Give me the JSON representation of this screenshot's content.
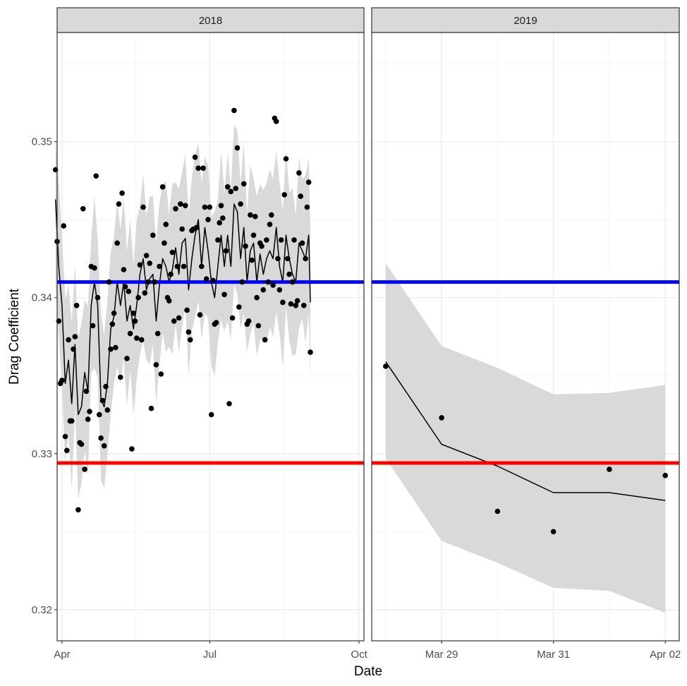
{
  "chart_data": {
    "type": "scatter",
    "xlabel": "Date",
    "ylabel": "Drag Coefficient",
    "ylim": [
      0.318,
      0.357
    ],
    "yticks": [
      0.32,
      0.33,
      0.34,
      0.35
    ],
    "ytick_labels": [
      "0.32",
      "0.33",
      "0.34",
      "0.35"
    ],
    "reference_lines": [
      {
        "y": 0.341,
        "color": "#0000ff"
      },
      {
        "y": 0.3294,
        "color": "#ff0000"
      }
    ],
    "colors": {
      "points": "#000000",
      "line": "#000000",
      "ribbon": "#d9d9d9",
      "strip_bg": "#d9d9d9",
      "grid_major": "#ebebeb",
      "panel_border": "#333333"
    },
    "grid": true,
    "legend": "none",
    "panels": [
      {
        "label": "2018",
        "x_unit": "day-of-year",
        "xlim": [
          "2018-03-29",
          "2018-10-04"
        ],
        "xticks": [
          "2018-04-01",
          "2018-07-01",
          "2018-10-01"
        ],
        "xtick_labels": [
          "Apr",
          "Jul",
          "Oct"
        ],
        "points": [
          [
            "2018-03-28",
            0.3482
          ],
          [
            "2018-03-29",
            0.3436
          ],
          [
            "2018-03-30",
            0.3385
          ],
          [
            "2018-03-31",
            0.3345
          ],
          [
            "2018-04-01",
            0.3347
          ],
          [
            "2018-04-02",
            0.3446
          ],
          [
            "2018-04-03",
            0.3311
          ],
          [
            "2018-04-04",
            0.3302
          ],
          [
            "2018-04-05",
            0.3373
          ],
          [
            "2018-04-06",
            0.3321
          ],
          [
            "2018-04-07",
            0.3321
          ],
          [
            "2018-04-08",
            0.3367
          ],
          [
            "2018-04-09",
            0.3375
          ],
          [
            "2018-04-10",
            0.3395
          ],
          [
            "2018-04-11",
            0.3264
          ],
          [
            "2018-04-12",
            0.3307
          ],
          [
            "2018-04-13",
            0.3306
          ],
          [
            "2018-04-14",
            0.3457
          ],
          [
            "2018-04-15",
            0.329
          ],
          [
            "2018-04-16",
            0.334
          ],
          [
            "2018-04-17",
            0.3322
          ],
          [
            "2018-04-18",
            0.3327
          ],
          [
            "2018-04-19",
            0.342
          ],
          [
            "2018-04-20",
            0.3382
          ],
          [
            "2018-04-21",
            0.3419
          ],
          [
            "2018-04-22",
            0.3478
          ],
          [
            "2018-04-23",
            0.34
          ],
          [
            "2018-04-24",
            0.3325
          ],
          [
            "2018-04-25",
            0.331
          ],
          [
            "2018-04-26",
            0.3334
          ],
          [
            "2018-04-27",
            0.3305
          ],
          [
            "2018-04-28",
            0.3343
          ],
          [
            "2018-04-29",
            0.3328
          ],
          [
            "2018-04-30",
            0.341
          ],
          [
            "2018-05-01",
            0.3367
          ],
          [
            "2018-05-02",
            0.3383
          ],
          [
            "2018-05-03",
            0.339
          ],
          [
            "2018-05-04",
            0.3368
          ],
          [
            "2018-05-05",
            0.3435
          ],
          [
            "2018-05-06",
            0.346
          ],
          [
            "2018-05-07",
            0.3349
          ],
          [
            "2018-05-08",
            0.3467
          ],
          [
            "2018-05-09",
            0.3418
          ],
          [
            "2018-05-10",
            0.3407
          ],
          [
            "2018-05-11",
            0.3361
          ],
          [
            "2018-05-12",
            0.3404
          ],
          [
            "2018-05-13",
            0.3377
          ],
          [
            "2018-05-14",
            0.3303
          ],
          [
            "2018-05-15",
            0.339
          ],
          [
            "2018-05-16",
            0.3385
          ],
          [
            "2018-05-17",
            0.3374
          ],
          [
            "2018-05-18",
            0.34
          ],
          [
            "2018-05-19",
            0.3421
          ],
          [
            "2018-05-20",
            0.3373
          ],
          [
            "2018-05-21",
            0.3458
          ],
          [
            "2018-05-22",
            0.3403
          ],
          [
            "2018-05-23",
            0.3427
          ],
          [
            "2018-05-24",
            0.341
          ],
          [
            "2018-05-25",
            0.3422
          ],
          [
            "2018-05-26",
            0.3329
          ],
          [
            "2018-05-27",
            0.344
          ],
          [
            "2018-05-28",
            0.341
          ],
          [
            "2018-05-29",
            0.3357
          ],
          [
            "2018-05-30",
            0.3377
          ],
          [
            "2018-05-31",
            0.342
          ],
          [
            "2018-06-01",
            0.3351
          ],
          [
            "2018-06-02",
            0.3471
          ],
          [
            "2018-06-03",
            0.3435
          ],
          [
            "2018-06-04",
            0.3447
          ],
          [
            "2018-06-05",
            0.34
          ],
          [
            "2018-06-06",
            0.3398
          ],
          [
            "2018-06-07",
            0.3415
          ],
          [
            "2018-06-08",
            0.3429
          ],
          [
            "2018-06-09",
            0.3385
          ],
          [
            "2018-06-10",
            0.3457
          ],
          [
            "2018-06-11",
            0.342
          ],
          [
            "2018-06-12",
            0.3387
          ],
          [
            "2018-06-13",
            0.346
          ],
          [
            "2018-06-14",
            0.3444
          ],
          [
            "2018-06-15",
            0.342
          ],
          [
            "2018-06-16",
            0.3459
          ],
          [
            "2018-06-17",
            0.3392
          ],
          [
            "2018-06-18",
            0.3378
          ],
          [
            "2018-06-19",
            0.3373
          ],
          [
            "2018-06-20",
            0.3443
          ],
          [
            "2018-06-21",
            0.3444
          ],
          [
            "2018-06-22",
            0.349
          ],
          [
            "2018-06-23",
            0.3445
          ],
          [
            "2018-06-24",
            0.3483
          ],
          [
            "2018-06-25",
            0.3389
          ],
          [
            "2018-06-26",
            0.342
          ],
          [
            "2018-06-27",
            0.3483
          ],
          [
            "2018-06-28",
            0.3458
          ],
          [
            "2018-06-29",
            0.3412
          ],
          [
            "2018-06-30",
            0.345
          ],
          [
            "2018-07-01",
            0.3458
          ],
          [
            "2018-07-02",
            0.3325
          ],
          [
            "2018-07-03",
            0.3411
          ],
          [
            "2018-07-04",
            0.3383
          ],
          [
            "2018-07-05",
            0.3384
          ],
          [
            "2018-07-06",
            0.3437
          ],
          [
            "2018-07-07",
            0.3448
          ],
          [
            "2018-07-08",
            0.3459
          ],
          [
            "2018-07-09",
            0.3451
          ],
          [
            "2018-07-10",
            0.3402
          ],
          [
            "2018-07-11",
            0.343
          ],
          [
            "2018-07-12",
            0.3471
          ],
          [
            "2018-07-13",
            0.3332
          ],
          [
            "2018-07-14",
            0.3468
          ],
          [
            "2018-07-15",
            0.3387
          ],
          [
            "2018-07-16",
            0.352
          ],
          [
            "2018-07-17",
            0.347
          ],
          [
            "2018-07-18",
            0.3496
          ],
          [
            "2018-07-19",
            0.3394
          ],
          [
            "2018-07-20",
            0.346
          ],
          [
            "2018-07-21",
            0.341
          ],
          [
            "2018-07-22",
            0.3473
          ],
          [
            "2018-07-23",
            0.3433
          ],
          [
            "2018-07-24",
            0.3383
          ],
          [
            "2018-07-25",
            0.3385
          ],
          [
            "2018-07-26",
            0.3453
          ],
          [
            "2018-07-27",
            0.3424
          ],
          [
            "2018-07-28",
            0.344
          ],
          [
            "2018-07-29",
            0.3452
          ],
          [
            "2018-07-30",
            0.34
          ],
          [
            "2018-07-31",
            0.3382
          ],
          [
            "2018-08-01",
            0.3435
          ],
          [
            "2018-08-02",
            0.3433
          ],
          [
            "2018-08-03",
            0.3405
          ],
          [
            "2018-08-04",
            0.3373
          ],
          [
            "2018-08-05",
            0.3437
          ],
          [
            "2018-08-06",
            0.341
          ],
          [
            "2018-08-07",
            0.3447
          ],
          [
            "2018-08-08",
            0.3453
          ],
          [
            "2018-08-09",
            0.3408
          ],
          [
            "2018-08-10",
            0.3515
          ],
          [
            "2018-08-11",
            0.3513
          ],
          [
            "2018-08-12",
            0.3425
          ],
          [
            "2018-08-13",
            0.3405
          ],
          [
            "2018-08-14",
            0.3437
          ],
          [
            "2018-08-15",
            0.3397
          ],
          [
            "2018-08-16",
            0.3466
          ],
          [
            "2018-08-17",
            0.3489
          ],
          [
            "2018-08-18",
            0.3425
          ],
          [
            "2018-08-19",
            0.3415
          ],
          [
            "2018-08-20",
            0.3396
          ],
          [
            "2018-08-21",
            0.341
          ],
          [
            "2018-08-22",
            0.3437
          ],
          [
            "2018-08-23",
            0.3395
          ],
          [
            "2018-08-24",
            0.3398
          ],
          [
            "2018-08-25",
            0.348
          ],
          [
            "2018-08-26",
            0.3465
          ],
          [
            "2018-08-27",
            0.3435
          ],
          [
            "2018-08-28",
            0.3395
          ],
          [
            "2018-08-29",
            0.3425
          ],
          [
            "2018-08-30",
            0.3458
          ],
          [
            "2018-08-31",
            0.3474
          ],
          [
            "2018-09-01",
            0.3365
          ]
        ],
        "line": [
          [
            "2018-03-28",
            0.3463
          ],
          [
            "2018-03-30",
            0.342
          ],
          [
            "2018-04-01",
            0.3395
          ],
          [
            "2018-04-03",
            0.3345
          ],
          [
            "2018-04-05",
            0.336
          ],
          [
            "2018-04-07",
            0.3332
          ],
          [
            "2018-04-09",
            0.337
          ],
          [
            "2018-04-11",
            0.3325
          ],
          [
            "2018-04-13",
            0.333
          ],
          [
            "2018-04-15",
            0.3352
          ],
          [
            "2018-04-17",
            0.334
          ],
          [
            "2018-04-19",
            0.3395
          ],
          [
            "2018-04-21",
            0.341
          ],
          [
            "2018-04-23",
            0.3395
          ],
          [
            "2018-04-25",
            0.3335
          ],
          [
            "2018-04-27",
            0.333
          ],
          [
            "2018-04-29",
            0.3345
          ],
          [
            "2018-05-01",
            0.338
          ],
          [
            "2018-05-03",
            0.3388
          ],
          [
            "2018-05-05",
            0.341
          ],
          [
            "2018-05-07",
            0.3395
          ],
          [
            "2018-05-09",
            0.341
          ],
          [
            "2018-05-11",
            0.3385
          ],
          [
            "2018-05-13",
            0.3395
          ],
          [
            "2018-05-15",
            0.338
          ],
          [
            "2018-05-17",
            0.3395
          ],
          [
            "2018-05-19",
            0.3415
          ],
          [
            "2018-05-21",
            0.3425
          ],
          [
            "2018-05-23",
            0.3405
          ],
          [
            "2018-05-25",
            0.3412
          ],
          [
            "2018-05-27",
            0.3415
          ],
          [
            "2018-05-29",
            0.3385
          ],
          [
            "2018-05-31",
            0.3408
          ],
          [
            "2018-06-02",
            0.3425
          ],
          [
            "2018-06-04",
            0.342
          ],
          [
            "2018-06-06",
            0.341
          ],
          [
            "2018-06-08",
            0.3418
          ],
          [
            "2018-06-10",
            0.3432
          ],
          [
            "2018-06-12",
            0.3415
          ],
          [
            "2018-06-14",
            0.3435
          ],
          [
            "2018-06-16",
            0.3438
          ],
          [
            "2018-06-18",
            0.3405
          ],
          [
            "2018-06-20",
            0.3425
          ],
          [
            "2018-06-22",
            0.344
          ],
          [
            "2018-06-24",
            0.345
          ],
          [
            "2018-06-26",
            0.342
          ],
          [
            "2018-06-28",
            0.3445
          ],
          [
            "2018-06-30",
            0.343
          ],
          [
            "2018-07-02",
            0.341
          ],
          [
            "2018-07-04",
            0.34
          ],
          [
            "2018-07-06",
            0.342
          ],
          [
            "2018-07-08",
            0.344
          ],
          [
            "2018-07-10",
            0.342
          ],
          [
            "2018-07-12",
            0.344
          ],
          [
            "2018-07-14",
            0.342
          ],
          [
            "2018-07-16",
            0.346
          ],
          [
            "2018-07-18",
            0.3455
          ],
          [
            "2018-07-20",
            0.3425
          ],
          [
            "2018-07-22",
            0.3445
          ],
          [
            "2018-07-24",
            0.341
          ],
          [
            "2018-07-26",
            0.343
          ],
          [
            "2018-07-28",
            0.3435
          ],
          [
            "2018-07-30",
            0.341
          ],
          [
            "2018-08-01",
            0.3428
          ],
          [
            "2018-08-03",
            0.3415
          ],
          [
            "2018-08-05",
            0.3425
          ],
          [
            "2018-08-07",
            0.343
          ],
          [
            "2018-08-09",
            0.3425
          ],
          [
            "2018-08-11",
            0.3445
          ],
          [
            "2018-08-13",
            0.342
          ],
          [
            "2018-08-15",
            0.341
          ],
          [
            "2018-08-17",
            0.344
          ],
          [
            "2018-08-19",
            0.3425
          ],
          [
            "2018-08-21",
            0.3415
          ],
          [
            "2018-08-23",
            0.341
          ],
          [
            "2018-08-25",
            0.3435
          ],
          [
            "2018-08-27",
            0.343
          ],
          [
            "2018-08-29",
            0.3425
          ],
          [
            "2018-08-31",
            0.344
          ],
          [
            "2018-09-01",
            0.3397
          ]
        ],
        "ribbon_halfwidth": 0.0048
      },
      {
        "label": "2019",
        "x_unit": "date",
        "xlim": [
          "2019-03-27 18:00",
          "2019-04-02 06:00"
        ],
        "xticks": [
          "2019-03-29",
          "2019-03-31",
          "2019-04-02"
        ],
        "xtick_labels": [
          "Mar 29",
          "Mar 31",
          "Apr 02"
        ],
        "points": [
          [
            "2019-03-28",
            0.3356
          ],
          [
            "2019-03-29",
            0.3323
          ],
          [
            "2019-03-30",
            0.3263
          ],
          [
            "2019-03-31",
            0.325
          ],
          [
            "2019-04-01",
            0.329
          ],
          [
            "2019-04-02",
            0.3286
          ]
        ],
        "line": [
          [
            "2019-03-28",
            0.3359
          ],
          [
            "2019-03-29",
            0.3306
          ],
          [
            "2019-03-30",
            0.3292
          ],
          [
            "2019-03-31",
            0.3275
          ],
          [
            "2019-04-01",
            0.3275
          ],
          [
            "2019-04-02",
            0.327
          ]
        ],
        "ribbon_upper": [
          0.3422,
          0.3369,
          0.3355,
          0.3338,
          0.3339,
          0.3344
        ],
        "ribbon_lower": [
          0.3297,
          0.3244,
          0.323,
          0.3214,
          0.3212,
          0.3198
        ]
      }
    ]
  }
}
